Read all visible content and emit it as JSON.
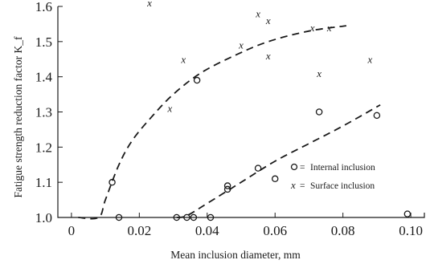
{
  "chart_data": {
    "type": "scatter",
    "xlabel": "Mean inclusion diameter, mm",
    "ylabel": "Fatigue strength reduction factor K_f",
    "xlim": [
      -0.004,
      0.104
    ],
    "ylim": [
      1.0,
      1.6
    ],
    "x_ticks": [
      {
        "value": 0,
        "label": "0"
      },
      {
        "value": 0.02,
        "label": "0.02"
      },
      {
        "value": 0.04,
        "label": "0.04"
      },
      {
        "value": 0.06,
        "label": "0.06"
      },
      {
        "value": 0.08,
        "label": "0.08"
      },
      {
        "value": 0.1,
        "label": "0.10"
      }
    ],
    "y_ticks": [
      {
        "value": 1.0,
        "label": "1.0"
      },
      {
        "value": 1.1,
        "label": "1.1"
      },
      {
        "value": 1.2,
        "label": "1.2"
      },
      {
        "value": 1.3,
        "label": "1.3"
      },
      {
        "value": 1.4,
        "label": "1.4"
      },
      {
        "value": 1.5,
        "label": "1.5"
      },
      {
        "value": 1.6,
        "label": "1.6"
      }
    ],
    "series": [
      {
        "name": "Internal inclusion",
        "marker": "o",
        "points": [
          [
            0.012,
            1.1
          ],
          [
            0.014,
            1.0
          ],
          [
            0.031,
            1.0
          ],
          [
            0.034,
            1.0
          ],
          [
            0.036,
            1.0
          ],
          [
            0.037,
            1.39
          ],
          [
            0.041,
            1.0
          ],
          [
            0.046,
            1.09
          ],
          [
            0.046,
            1.08
          ],
          [
            0.055,
            1.14
          ],
          [
            0.06,
            1.11
          ],
          [
            0.073,
            1.3
          ],
          [
            0.09,
            1.29
          ],
          [
            0.099,
            1.01
          ]
        ]
      },
      {
        "name": "Surface inclusion",
        "marker": "x",
        "points": [
          [
            0.023,
            1.61
          ],
          [
            0.029,
            1.31
          ],
          [
            0.033,
            1.45
          ],
          [
            0.05,
            1.49
          ],
          [
            0.055,
            1.58
          ],
          [
            0.058,
            1.56
          ],
          [
            0.058,
            1.46
          ],
          [
            0.071,
            1.54
          ],
          [
            0.073,
            1.41
          ],
          [
            0.076,
            1.54
          ],
          [
            0.088,
            1.45
          ]
        ]
      }
    ],
    "trend_curves": [
      {
        "series": "Surface inclusion",
        "points": [
          [
            0.002,
            1.0
          ],
          [
            0.008,
            1.0
          ],
          [
            0.01,
            1.05
          ],
          [
            0.014,
            1.15
          ],
          [
            0.018,
            1.22
          ],
          [
            0.024,
            1.29
          ],
          [
            0.03,
            1.35
          ],
          [
            0.038,
            1.41
          ],
          [
            0.048,
            1.46
          ],
          [
            0.058,
            1.5
          ],
          [
            0.07,
            1.53
          ],
          [
            0.081,
            1.545
          ]
        ]
      },
      {
        "series": "Internal inclusion",
        "points": [
          [
            0.031,
            1.0
          ],
          [
            0.034,
            1.005
          ],
          [
            0.04,
            1.04
          ],
          [
            0.05,
            1.1
          ],
          [
            0.06,
            1.16
          ],
          [
            0.07,
            1.21
          ],
          [
            0.08,
            1.26
          ],
          [
            0.091,
            1.32
          ]
        ]
      }
    ],
    "legend": {
      "placement": "lower-right",
      "internal_label": "Internal inclusion",
      "surface_label": "Surface inclusion",
      "internal_symbol": "o",
      "surface_symbol": "x",
      "equals": "="
    }
  }
}
